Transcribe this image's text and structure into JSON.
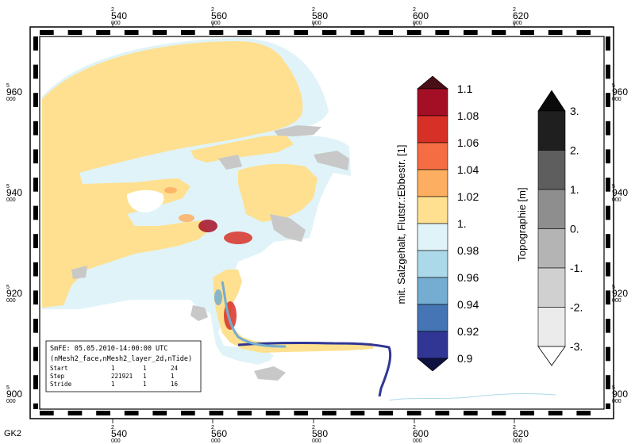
{
  "corner_label": "GK2",
  "x_ticks": [
    {
      "top": "2",
      "main": "540",
      "sub": "000"
    },
    {
      "top": "2",
      "main": "560",
      "sub": "000"
    },
    {
      "top": "2",
      "main": "580",
      "sub": "000"
    },
    {
      "top": "2",
      "main": "600",
      "sub": "000"
    },
    {
      "top": "2",
      "main": "620",
      "sub": "000"
    }
  ],
  "y_ticks": [
    {
      "top": "5",
      "main": "960",
      "sub": "000"
    },
    {
      "top": "5",
      "main": "940",
      "sub": "000"
    },
    {
      "top": "5",
      "main": "920",
      "sub": "000"
    },
    {
      "top": "5",
      "main": "900",
      "sub": "000"
    }
  ],
  "salinity_legend": {
    "title": "mit. Salzgehalt, Flutstr.:Ebbestr. [1]",
    "labels": [
      "1.1",
      "1.08",
      "1.06",
      "1.04",
      "1.02",
      "1.",
      "0.98",
      "0.96",
      "0.94",
      "0.92",
      "0.9"
    ],
    "colors": [
      "#a50f26",
      "#d73027",
      "#f46d43",
      "#fdae61",
      "#fee090",
      "#e0f3f8",
      "#abd9e9",
      "#74add1",
      "#4575b4",
      "#313695"
    ],
    "over_color": "#4a0e16",
    "under_color": "#0f1240"
  },
  "topo_legend": {
    "title": "Topographie [m]",
    "labels": [
      "3.",
      "2.",
      "1.",
      "0.",
      "-1.",
      "-2.",
      "-3."
    ],
    "colors": [
      "#1f1f1f",
      "#5e5e5e",
      "#8e8e8e",
      "#b4b4b4",
      "#d0d0d0",
      "#ebebeb"
    ],
    "over_color": "#0a0a0a",
    "under_color": "#ffffff"
  },
  "info_box": {
    "line1": "SmFE: 05.05.2010-14:00:00 UTC",
    "line2": "(nMesh2_face,nMesh2_layer_2d,nTide)",
    "rows": [
      {
        "name": "Start",
        "a": "1",
        "b": "1",
        "c": "24"
      },
      {
        "name": "Step",
        "a": "221921",
        "b": "1",
        "c": "1"
      },
      {
        "name": "Stride",
        "a": "1",
        "b": "1",
        "c": "16"
      }
    ]
  },
  "map_colors": {
    "sea": "#fee090",
    "light_blue": "#e0f3f8",
    "mid_blue": "#abd9e9",
    "blue": "#74add1",
    "dark_blue": "#313695",
    "orange": "#fdae61",
    "red": "#d73027",
    "dark_red": "#a50f26",
    "land": "#c8c8c8",
    "dark_land": "#5e5e5e"
  }
}
